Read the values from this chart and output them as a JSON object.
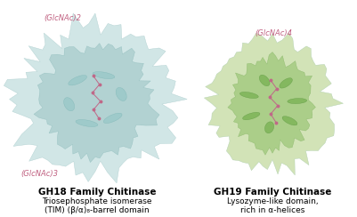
{
  "background_color": "#ffffff",
  "left_protein": {
    "label_top": "(GlcNAc)2",
    "label_bottom": "(GlcNAc)3",
    "label_color": "#c06080"
  },
  "right_protein": {
    "label_top": "(GlcNAc)4",
    "label_color": "#c06080"
  },
  "left_title": "GH18 Family Chitinase",
  "left_sub1": "Triosephosphate isomerase",
  "left_sub2": "(TIM) (β/α)₈-barrel domain",
  "right_title": "GH19 Family Chitinase",
  "right_sub1": "Lysozyme-like domain,",
  "right_sub2": "rich in α-helices",
  "title_fontsize": 7.5,
  "sub_fontsize": 6.5,
  "label_fontsize": 6.0,
  "fig_width": 4.01,
  "fig_height": 2.44
}
